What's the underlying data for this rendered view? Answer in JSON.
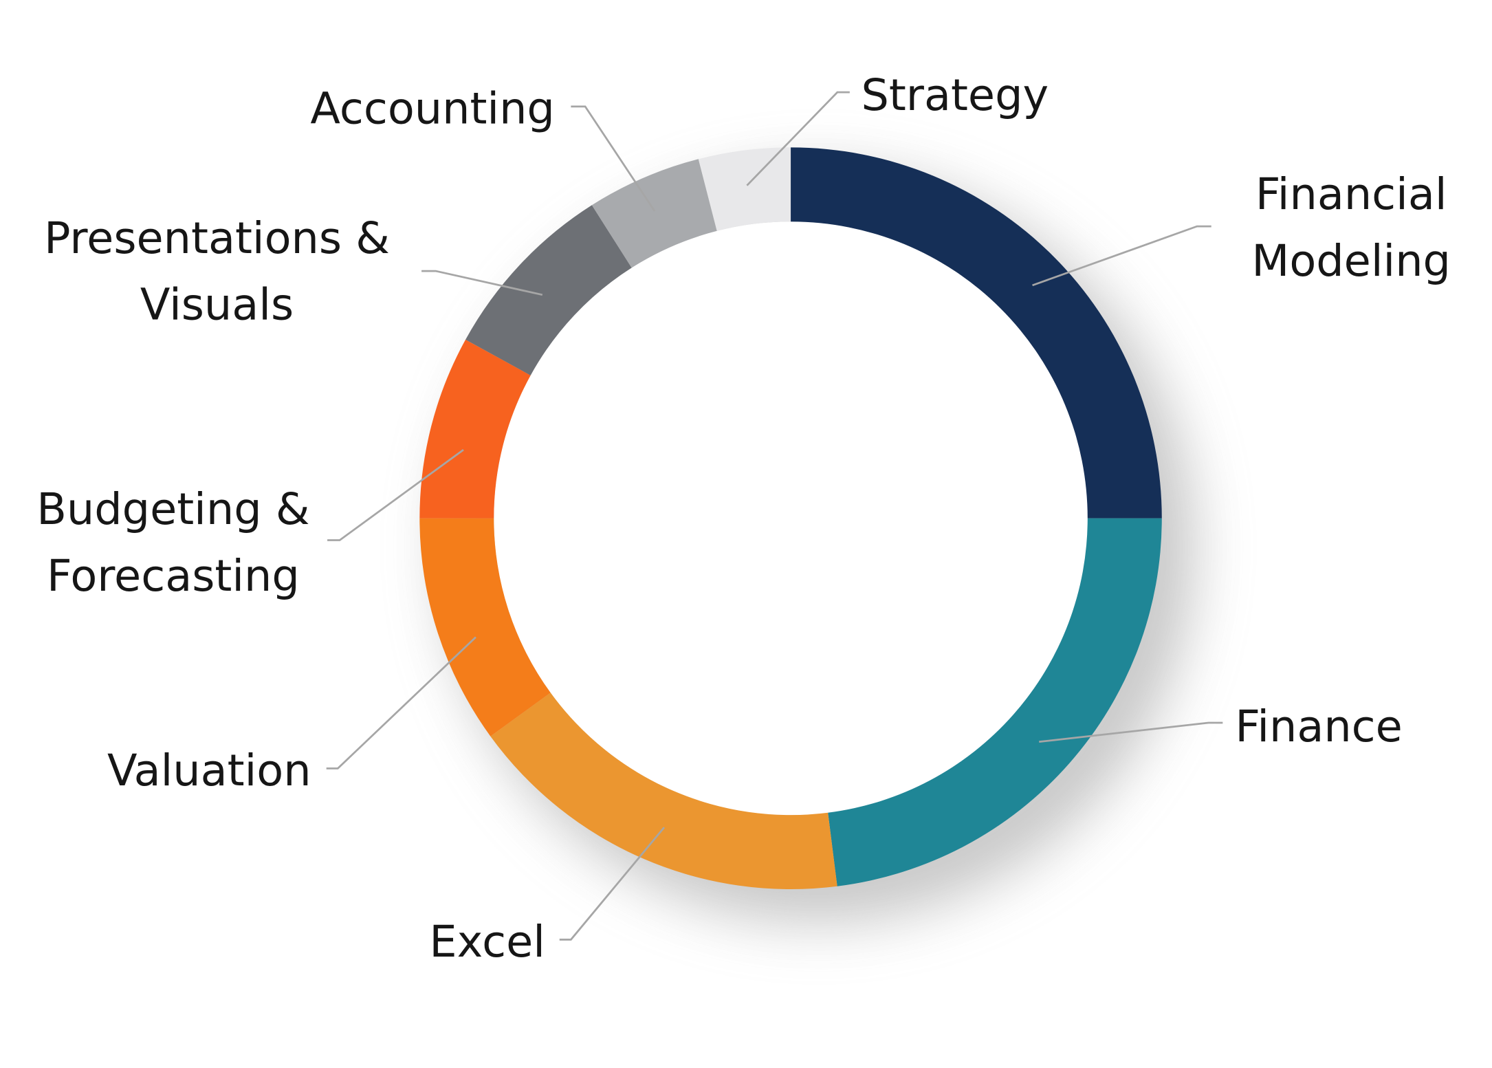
{
  "chart_data": {
    "type": "donut",
    "categories": [
      "Financial Modeling",
      "Finance",
      "Excel",
      "Valuation",
      "Budgeting & Forecasting",
      "Presentations & Visuals",
      "Accounting",
      "Strategy"
    ],
    "values": [
      25,
      23,
      17,
      10,
      8,
      8,
      5,
      4
    ],
    "colors": [
      "#152f57",
      "#1f8696",
      "#eb9630",
      "#f47d1a",
      "#f7621f",
      "#6d7075",
      "#a8aaad",
      "#e8e8ea"
    ]
  }
}
